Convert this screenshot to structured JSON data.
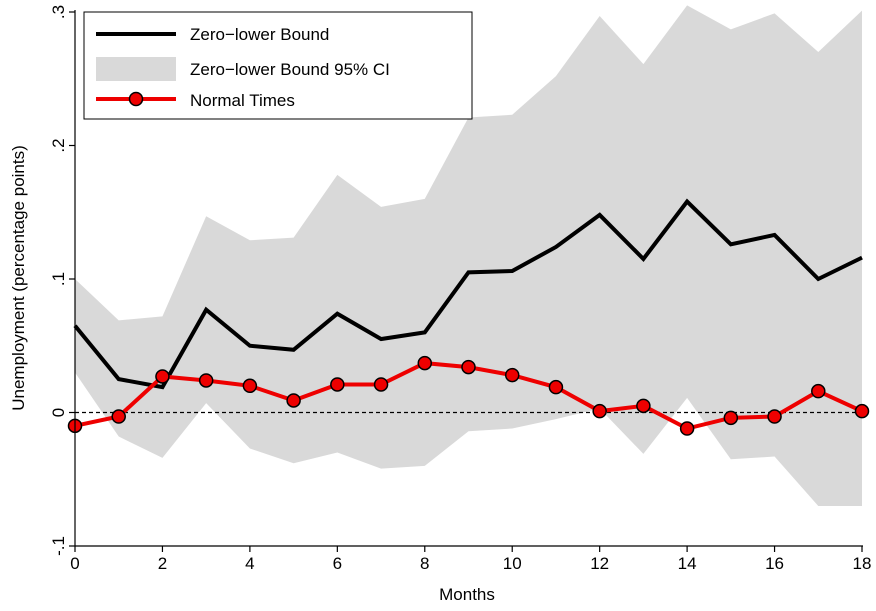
{
  "chart_data": {
    "type": "line",
    "xlabel": "Months",
    "ylabel": "Unemployment (percentage points)",
    "xlim": [
      0,
      18
    ],
    "ylim": [
      -0.1,
      0.3
    ],
    "xticks": [
      "0",
      "2",
      "4",
      "6",
      "8",
      "10",
      "12",
      "14",
      "16",
      "18"
    ],
    "yticks": [
      "-.1",
      "0",
      ".1",
      ".2",
      ".3"
    ],
    "ytick_values": [
      -0.1,
      0,
      0.1,
      0.2,
      0.3
    ],
    "xtick_values": [
      0,
      2,
      4,
      6,
      8,
      10,
      12,
      14,
      16,
      18
    ],
    "x": [
      0,
      1,
      2,
      3,
      4,
      5,
      6,
      7,
      8,
      9,
      10,
      11,
      12,
      13,
      14,
      15,
      16,
      17,
      18
    ],
    "zero_line": true,
    "legend_position": "top-left",
    "series": [
      {
        "name": "Zero−lower Bound",
        "kind": "line",
        "color": "#000000",
        "values": [
          0.065,
          0.025,
          0.019,
          0.077,
          0.05,
          0.047,
          0.074,
          0.055,
          0.06,
          0.105,
          0.106,
          0.124,
          0.148,
          0.115,
          0.158,
          0.126,
          0.133,
          0.1,
          0.116
        ]
      },
      {
        "name": "Zero−lower Bound 95% CI",
        "kind": "band",
        "color": "#d9d9d9",
        "upper": [
          0.1,
          0.069,
          0.072,
          0.147,
          0.129,
          0.131,
          0.178,
          0.154,
          0.16,
          0.221,
          0.223,
          0.252,
          0.297,
          0.261,
          0.305,
          0.287,
          0.299,
          0.27,
          0.301
        ],
        "lower": [
          0.03,
          -0.018,
          -0.034,
          0.007,
          -0.027,
          -0.038,
          -0.03,
          -0.042,
          -0.04,
          -0.014,
          -0.012,
          -0.005,
          0.003,
          -0.031,
          0.011,
          -0.035,
          -0.033,
          -0.07,
          -0.07
        ]
      },
      {
        "name": "Normal Times",
        "kind": "line-markers",
        "color": "#ee0000",
        "values": [
          -0.01,
          -0.003,
          0.027,
          0.024,
          0.02,
          0.009,
          0.021,
          0.021,
          0.037,
          0.034,
          0.028,
          0.019,
          0.001,
          0.005,
          -0.012,
          -0.004,
          -0.003,
          0.016,
          0.001
        ]
      }
    ]
  }
}
